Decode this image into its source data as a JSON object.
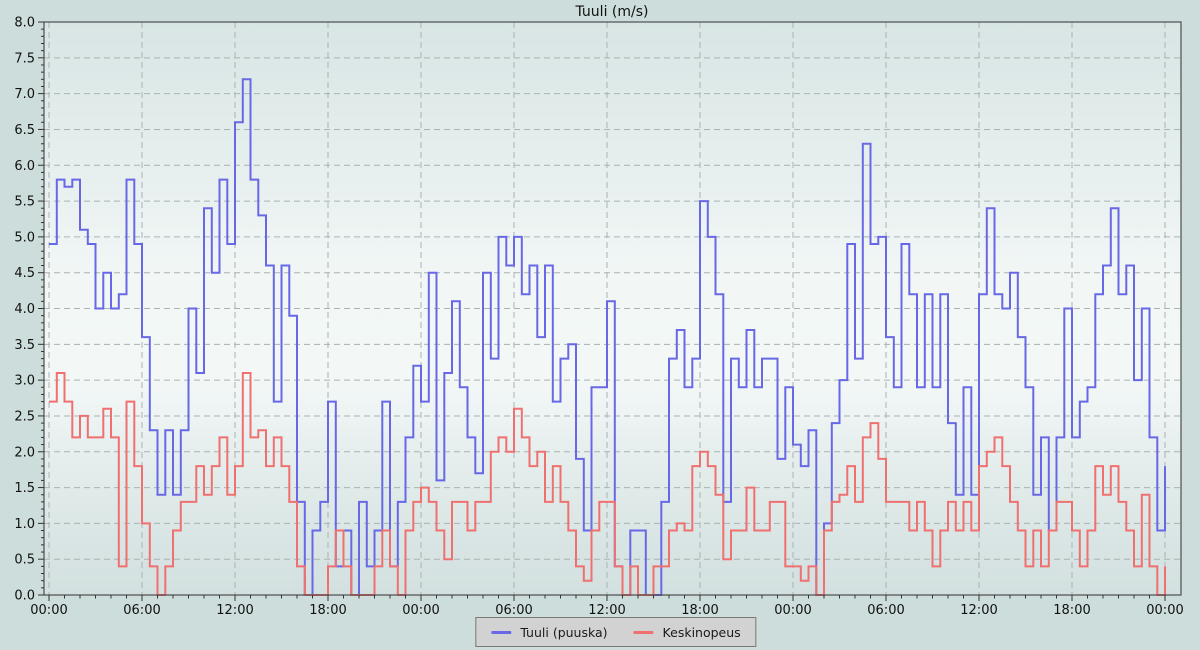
{
  "title": "Tuuli (m/s)",
  "legend": {
    "items": [
      {
        "label": "Tuuli (puuska)",
        "color": "#6868e6"
      },
      {
        "label": "Keskinopeus",
        "color": "#f07070"
      }
    ]
  },
  "colors": {
    "page_background": "#cddddc",
    "plot_frame": "#4d4d4d",
    "gridline": "#a9b3b2",
    "tick": "#333333",
    "text": "#111111",
    "legend_background": "#d2d2d2",
    "legend_border": "#787878",
    "gust_line": "#6868e6",
    "avg_line": "#f07070"
  },
  "chart_data": {
    "type": "line",
    "step_style": true,
    "title": "Tuuli (m/s)",
    "xlabel": "",
    "ylabel": "",
    "ylim": [
      0,
      8
    ],
    "y_tick_step": 0.5,
    "y_minor_step": 0.1,
    "y_tick_labels": [
      "0.0",
      "0.5",
      "1.0",
      "1.5",
      "2.0",
      "2.5",
      "3.0",
      "3.5",
      "4.0",
      "4.5",
      "5.0",
      "5.5",
      "6.0",
      "6.5",
      "7.0",
      "7.5",
      "8.0"
    ],
    "x_span_hours": 72,
    "x_minor_step_hours": 1,
    "x_tick_hours": [
      0,
      6,
      12,
      18,
      24,
      30,
      36,
      42,
      48,
      54,
      60,
      66,
      72
    ],
    "x_tick_labels": [
      "00:00",
      "06:00",
      "12:00",
      "18:00",
      "00:00",
      "06:00",
      "12:00",
      "18:00",
      "00:00",
      "06:00",
      "12:00",
      "18:00",
      "00:00"
    ],
    "sample_interval_hours": 0.5,
    "grid": "dashed",
    "legend_position": "bottom-center",
    "series": [
      {
        "name": "Tuuli (puuska)",
        "color": "#6868e6",
        "values": [
          4.9,
          5.8,
          5.7,
          5.8,
          5.1,
          4.9,
          4.0,
          4.5,
          4.0,
          4.2,
          5.8,
          4.9,
          3.6,
          2.3,
          1.4,
          2.3,
          1.4,
          2.3,
          4.0,
          3.1,
          5.4,
          4.5,
          5.8,
          4.9,
          6.6,
          7.2,
          5.8,
          5.3,
          4.6,
          2.7,
          4.6,
          3.9,
          1.3,
          0.0,
          0.9,
          1.3,
          2.7,
          0.4,
          0.9,
          0.0,
          1.3,
          0.4,
          0.9,
          2.7,
          0.4,
          1.3,
          2.2,
          3.2,
          2.7,
          4.5,
          1.6,
          3.1,
          4.1,
          2.9,
          2.2,
          1.7,
          4.5,
          3.3,
          5.0,
          4.6,
          5.0,
          4.2,
          4.6,
          3.6,
          4.6,
          2.7,
          3.3,
          3.5,
          1.9,
          0.9,
          2.9,
          2.9,
          4.1,
          0.4,
          0.0,
          0.9,
          0.9,
          0.0,
          0.0,
          1.3,
          3.3,
          3.7,
          2.9,
          3.3,
          5.5,
          5.0,
          4.2,
          1.3,
          3.3,
          2.9,
          3.7,
          2.9,
          3.3,
          3.3,
          1.9,
          2.9,
          2.1,
          1.8,
          2.3,
          0.0,
          1.0,
          2.4,
          3.0,
          4.9,
          3.3,
          6.3,
          4.9,
          5.0,
          3.6,
          2.9,
          4.9,
          4.2,
          2.9,
          4.2,
          2.9,
          4.2,
          2.4,
          1.4,
          2.9,
          1.4,
          4.2,
          5.4,
          4.2,
          4.0,
          4.5,
          3.6,
          2.9,
          1.4,
          2.2,
          0.9,
          2.2,
          4.0,
          2.2,
          2.7,
          2.9,
          4.2,
          4.6,
          5.4,
          4.2,
          4.6,
          3.0,
          4.0,
          2.2,
          0.9,
          1.8
        ]
      },
      {
        "name": "Keskinopeus",
        "color": "#f07070",
        "values": [
          2.7,
          3.1,
          2.7,
          2.2,
          2.5,
          2.2,
          2.2,
          2.6,
          2.2,
          0.4,
          2.7,
          1.8,
          1.0,
          0.4,
          0.0,
          0.4,
          0.9,
          1.3,
          1.3,
          1.8,
          1.4,
          1.8,
          2.2,
          1.4,
          1.8,
          3.1,
          2.2,
          2.3,
          1.8,
          2.2,
          1.8,
          1.3,
          0.4,
          0.0,
          0.0,
          0.0,
          0.4,
          0.9,
          0.4,
          0.0,
          0.0,
          0.0,
          0.4,
          0.9,
          0.4,
          0.0,
          0.9,
          1.3,
          1.5,
          1.3,
          0.9,
          0.5,
          1.3,
          1.3,
          0.9,
          1.3,
          1.3,
          2.0,
          2.2,
          2.0,
          2.6,
          2.2,
          1.8,
          2.0,
          1.3,
          1.8,
          1.3,
          0.9,
          0.4,
          0.2,
          0.9,
          1.3,
          1.3,
          0.4,
          0.0,
          0.4,
          0.0,
          0.0,
          0.4,
          0.4,
          0.9,
          1.0,
          0.9,
          1.8,
          2.0,
          1.8,
          1.4,
          0.5,
          0.9,
          0.9,
          1.5,
          0.9,
          0.9,
          1.3,
          1.3,
          0.4,
          0.4,
          0.2,
          0.4,
          0.0,
          0.9,
          1.3,
          1.4,
          1.8,
          1.3,
          2.2,
          2.4,
          1.9,
          1.3,
          1.3,
          1.3,
          0.9,
          1.3,
          0.9,
          0.4,
          0.9,
          1.3,
          0.9,
          1.3,
          0.9,
          1.8,
          2.0,
          2.2,
          1.8,
          1.3,
          0.9,
          0.4,
          0.9,
          0.4,
          0.9,
          1.3,
          1.3,
          0.9,
          0.4,
          0.9,
          1.8,
          1.4,
          1.8,
          1.3,
          0.9,
          0.4,
          1.4,
          0.4,
          0.0,
          0.4
        ]
      }
    ]
  }
}
